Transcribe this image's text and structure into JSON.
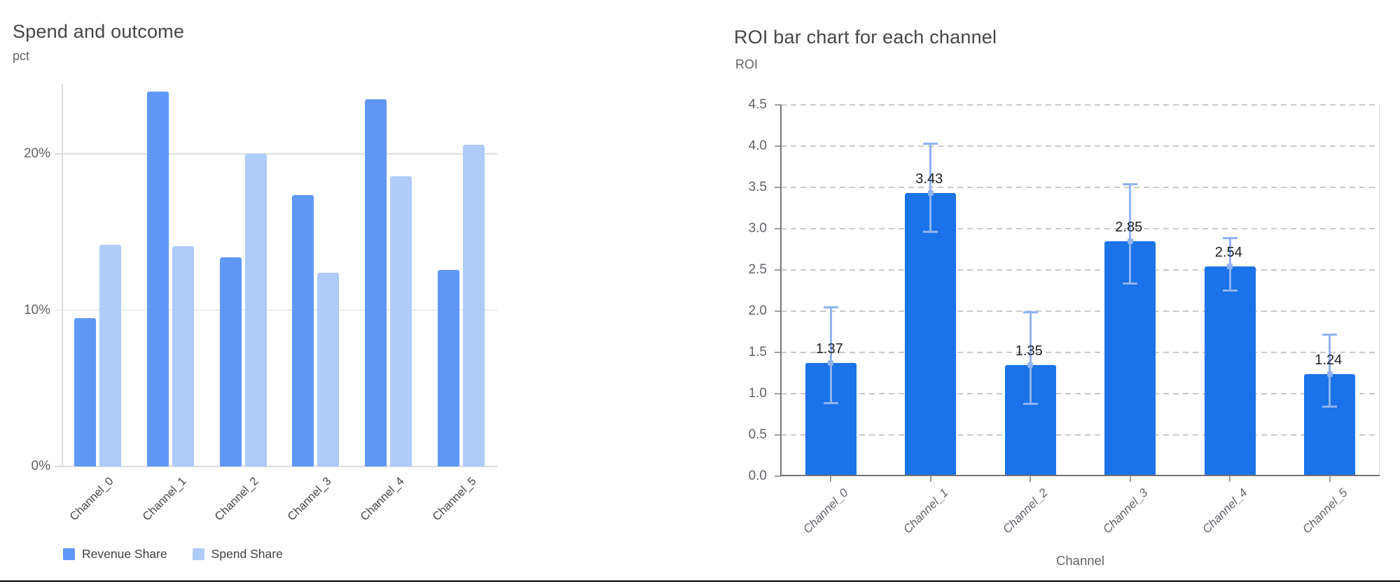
{
  "page": {
    "background": "#ffffff",
    "bottom_rule_color": "#000000"
  },
  "chart_data": [
    {
      "type": "bar",
      "title": "Spend and outcome",
      "ylabel": "pct",
      "xlabel": "",
      "categories": [
        "Channel_0",
        "Channel_1",
        "Channel_2",
        "Channel_3",
        "Channel_4",
        "Channel_5"
      ],
      "series": [
        {
          "name": "Revenue Share",
          "color": "#5e97f6",
          "values": [
            9.5,
            24.0,
            13.4,
            17.4,
            23.5,
            12.6
          ]
        },
        {
          "name": "Spend Share",
          "color": "#aecbfa",
          "values": [
            14.2,
            14.1,
            20.0,
            12.4,
            18.6,
            20.6
          ]
        }
      ],
      "ylim": [
        0,
        24.5
      ],
      "yticks": [
        {
          "value": 0,
          "label": "0%"
        },
        {
          "value": 10,
          "label": "10%"
        },
        {
          "value": 20,
          "label": "20%"
        }
      ],
      "grid": "solid",
      "legend_position": "bottom"
    },
    {
      "type": "bar",
      "title": "ROI bar chart for each channel",
      "ylabel": "ROI",
      "xlabel": "Channel",
      "categories": [
        "Channel_0",
        "Channel_1",
        "Channel_2",
        "Channel_3",
        "Channel_4",
        "Channel_5"
      ],
      "series": [
        {
          "name": "ROI",
          "color": "#1a73e8",
          "values": [
            1.37,
            3.43,
            1.35,
            2.85,
            2.54,
            1.24
          ]
        }
      ],
      "bar_labels": [
        "1.37",
        "3.43",
        "1.35",
        "2.85",
        "2.54",
        "1.24"
      ],
      "error_bars": {
        "color": "#8fb3f6",
        "low": [
          0.88,
          2.96,
          0.87,
          2.33,
          2.25,
          0.84
        ],
        "high": [
          2.05,
          4.03,
          1.99,
          3.54,
          2.89,
          1.72
        ]
      },
      "ylim": [
        0,
        4.5
      ],
      "yticks": [
        {
          "value": 0,
          "label": "0.0"
        },
        {
          "value": 0.5,
          "label": "0.5"
        },
        {
          "value": 1,
          "label": "1.0"
        },
        {
          "value": 1.5,
          "label": "1.5"
        },
        {
          "value": 2,
          "label": "2.0"
        },
        {
          "value": 2.5,
          "label": "2.5"
        },
        {
          "value": 3,
          "label": "3.0"
        },
        {
          "value": 3.5,
          "label": "3.5"
        },
        {
          "value": 4,
          "label": "4.0"
        },
        {
          "value": 4.5,
          "label": "4.5"
        }
      ],
      "grid": "dashed",
      "legend_position": "none"
    }
  ]
}
